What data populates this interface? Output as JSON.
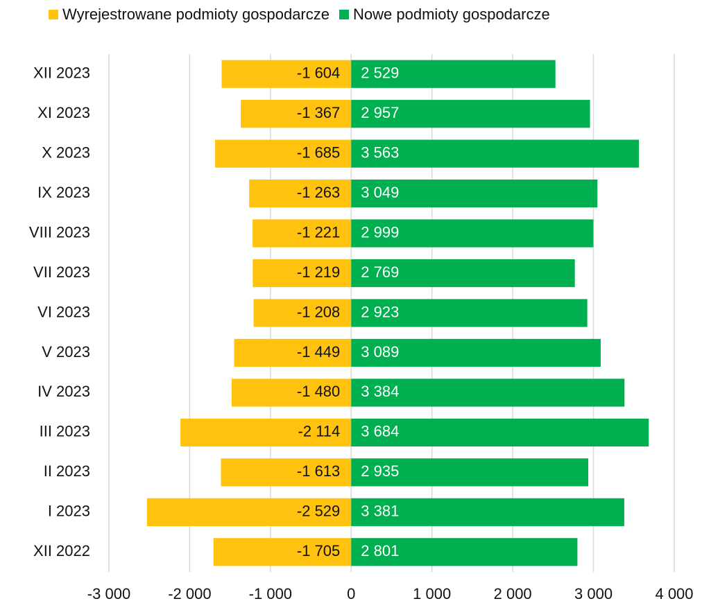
{
  "chart_data": {
    "type": "bar",
    "orientation": "horizontal",
    "categories": [
      "XII 2023",
      "XI 2023",
      "X 2023",
      "IX 2023",
      "VIII 2023",
      "VII 2023",
      "VI 2023",
      "V 2023",
      "IV 2023",
      "III 2023",
      "II 2023",
      "I 2023",
      "XII 2022"
    ],
    "series": [
      {
        "name": "Wyrejestrowane podmioty gospodarcze",
        "color": "#ffc20e",
        "values": [
          -1604,
          -1367,
          -1685,
          -1263,
          -1221,
          -1219,
          -1208,
          -1449,
          -1480,
          -2114,
          -1613,
          -2529,
          -1705
        ],
        "value_labels": [
          "-1 604",
          "-1 367",
          "-1 685",
          "-1 263",
          "-1 221",
          "-1 219",
          "-1 208",
          "-1 449",
          "-1 480",
          "-2 114",
          "-1 613",
          "-2 529",
          "-1 705"
        ]
      },
      {
        "name": "Nowe podmioty gospodarcze",
        "color": "#00b050",
        "values": [
          2529,
          2957,
          3563,
          3049,
          2999,
          2769,
          2923,
          3089,
          3384,
          3684,
          2935,
          3381,
          2801
        ],
        "value_labels": [
          "2 529",
          "2 957",
          "3 563",
          "3 049",
          "2 999",
          "2 769",
          "2 923",
          "3 089",
          "3 384",
          "3 684",
          "2 935",
          "3 381",
          "2 801"
        ]
      }
    ],
    "xlim": [
      -3000,
      4000
    ],
    "xticks": [
      {
        "value": -3000,
        "label": "-3 000"
      },
      {
        "value": -2000,
        "label": "-2 000"
      },
      {
        "value": -1000,
        "label": "-1 000"
      },
      0,
      {
        "value": 1000,
        "label": "1 000"
      },
      {
        "value": 2000,
        "label": "2 000"
      },
      {
        "value": 3000,
        "label": "3 000"
      },
      {
        "value": 4000,
        "label": "4 000"
      }
    ],
    "grid": true,
    "legend": "top",
    "stacked": true
  }
}
